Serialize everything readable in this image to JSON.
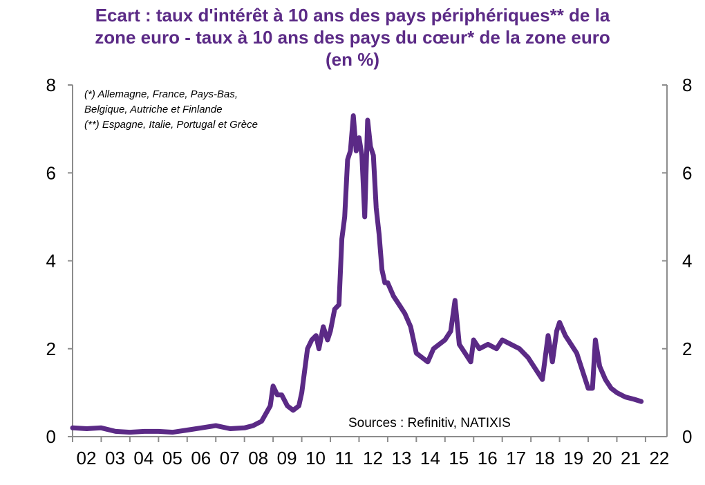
{
  "chart_data": {
    "type": "line",
    "title_lines": [
      "Ecart : taux d'intérêt à 10 ans des pays périphériques** de la",
      "zone euro - taux à 10 ans des pays du cœur* de la zone euro",
      "(en %)"
    ],
    "notes": [
      "(*) Allemagne, France, Pays-Bas,",
      "Belgique, Autriche et Finlande",
      "(**) Espagne, Italie, Portugal et Grèce"
    ],
    "source": "Sources : Refinitiv, NATIXIS",
    "x_ticks": [
      "02",
      "03",
      "04",
      "05",
      "06",
      "07",
      "08",
      "09",
      "10",
      "11",
      "12",
      "13",
      "14",
      "15",
      "16",
      "17",
      "18",
      "19",
      "20",
      "21",
      "22"
    ],
    "y_ticks": [
      "0",
      "2",
      "4",
      "6",
      "8"
    ],
    "ylim": [
      0,
      8
    ],
    "xlim": [
      2002,
      2022.75
    ],
    "line_color": "#5b2a86",
    "series": [
      {
        "x": [
          2002.0,
          2002.5,
          2003.0,
          2003.5,
          2004.0,
          2004.5,
          2005.0,
          2005.5,
          2006.0,
          2006.5,
          2007.0,
          2007.5,
          2008.0,
          2008.3,
          2008.6,
          2008.9,
          2009.0,
          2009.15,
          2009.3,
          2009.5,
          2009.7,
          2009.9,
          2010.0,
          2010.2,
          2010.35,
          2010.5,
          2010.6,
          2010.75,
          2010.9,
          2011.0,
          2011.15,
          2011.3,
          2011.4,
          2011.5,
          2011.6,
          2011.7,
          2011.8,
          2011.9,
          2012.0,
          2012.1,
          2012.2,
          2012.3,
          2012.4,
          2012.5,
          2012.6,
          2012.7,
          2012.8,
          2012.9,
          2013.0,
          2013.2,
          2013.4,
          2013.6,
          2013.8,
          2014.0,
          2014.2,
          2014.4,
          2014.6,
          2014.8,
          2015.0,
          2015.2,
          2015.35,
          2015.5,
          2015.7,
          2015.9,
          2016.0,
          2016.2,
          2016.5,
          2016.8,
          2017.0,
          2017.3,
          2017.6,
          2017.9,
          2018.2,
          2018.4,
          2018.6,
          2018.75,
          2018.9,
          2019.0,
          2019.2,
          2019.4,
          2019.6,
          2019.8,
          2020.0,
          2020.15,
          2020.25,
          2020.4,
          2020.6,
          2020.8,
          2021.0,
          2021.3,
          2021.6,
          2021.85
        ],
        "y": [
          0.2,
          0.18,
          0.2,
          0.12,
          0.1,
          0.12,
          0.12,
          0.1,
          0.15,
          0.2,
          0.25,
          0.18,
          0.2,
          0.25,
          0.35,
          0.7,
          1.15,
          0.95,
          0.95,
          0.7,
          0.6,
          0.7,
          1.0,
          2.0,
          2.2,
          2.3,
          2.0,
          2.5,
          2.2,
          2.4,
          2.9,
          3.0,
          4.5,
          5.0,
          6.3,
          6.5,
          7.3,
          6.5,
          6.8,
          6.4,
          5.0,
          7.2,
          6.6,
          6.4,
          5.2,
          4.6,
          3.8,
          3.5,
          3.5,
          3.2,
          3.0,
          2.8,
          2.5,
          1.9,
          1.8,
          1.7,
          2.0,
          2.1,
          2.2,
          2.4,
          3.1,
          2.1,
          1.9,
          1.7,
          2.2,
          2.0,
          2.1,
          2.0,
          2.2,
          2.1,
          2.0,
          1.8,
          1.5,
          1.3,
          2.3,
          1.7,
          2.4,
          2.6,
          2.3,
          2.1,
          1.9,
          1.5,
          1.1,
          1.1,
          2.2,
          1.6,
          1.3,
          1.1,
          1.0,
          0.9,
          0.85,
          0.8
        ]
      }
    ]
  }
}
